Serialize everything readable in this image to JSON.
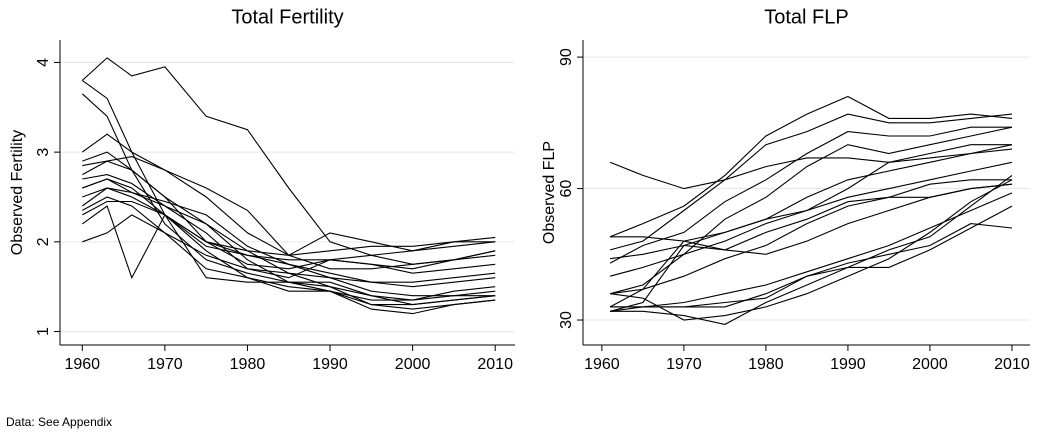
{
  "chart_data": [
    {
      "type": "line",
      "title": "Total Fertility",
      "y_label": "Observed Fertility",
      "x": [
        1960,
        1963,
        1966,
        1970,
        1975,
        1980,
        1985,
        1990,
        1995,
        2000,
        2005,
        2010
      ],
      "xlim": [
        1957.3,
        2012.4
      ],
      "xticks": [
        1960,
        1970,
        1980,
        1990,
        2000,
        2010
      ],
      "ylim": [
        0.85,
        4.25
      ],
      "yticks": [
        1,
        2,
        3,
        4
      ],
      "grid": true,
      "series": [
        {
          "color": "#000000",
          "values": [
            3.8,
            4.05,
            3.85,
            3.95,
            3.4,
            3.25,
            2.6,
            2.0,
            1.85,
            1.75,
            1.8,
            1.9
          ]
        },
        {
          "color": "#000000",
          "values": [
            3.8,
            3.6,
            3.0,
            2.3,
            1.6,
            1.55,
            1.55,
            1.55,
            1.4,
            1.3,
            1.35,
            1.4
          ]
        },
        {
          "color": "#000000",
          "values": [
            3.65,
            3.4,
            2.8,
            2.2,
            1.8,
            1.65,
            1.55,
            1.5,
            1.3,
            1.25,
            1.3,
            1.35
          ]
        },
        {
          "color": "#000000",
          "values": [
            3.0,
            3.2,
            3.0,
            2.8,
            2.5,
            2.1,
            1.85,
            2.1,
            2.0,
            1.9,
            1.95,
            2.0
          ]
        },
        {
          "color": "#000000",
          "values": [
            2.85,
            2.9,
            2.95,
            2.8,
            2.6,
            2.35,
            1.85,
            1.7,
            1.7,
            1.75,
            1.8,
            1.85
          ]
        },
        {
          "color": "#000000",
          "values": [
            2.75,
            2.9,
            2.8,
            2.5,
            2.0,
            1.85,
            1.75,
            1.6,
            1.45,
            1.4,
            1.4,
            1.4
          ]
        },
        {
          "color": "#000000",
          "values": [
            2.7,
            2.75,
            2.65,
            2.4,
            2.1,
            1.7,
            1.6,
            1.8,
            1.85,
            1.9,
            2.0,
            2.05
          ]
        },
        {
          "color": "#000000",
          "values": [
            2.6,
            2.7,
            2.6,
            2.3,
            1.9,
            1.6,
            1.45,
            1.45,
            1.3,
            1.3,
            1.35,
            1.4
          ]
        },
        {
          "color": "#000000",
          "values": [
            2.5,
            2.6,
            2.5,
            2.3,
            1.95,
            1.85,
            1.8,
            1.8,
            1.75,
            1.7,
            1.8,
            1.9
          ]
        },
        {
          "color": "#000000",
          "values": [
            2.4,
            2.6,
            2.55,
            2.4,
            2.2,
            1.9,
            1.65,
            1.5,
            1.4,
            1.35,
            1.4,
            1.45
          ]
        },
        {
          "color": "#000000",
          "values": [
            2.35,
            2.5,
            2.4,
            2.1,
            1.7,
            1.6,
            1.5,
            1.45,
            1.35,
            1.35,
            1.45,
            1.5
          ]
        },
        {
          "color": "#000000",
          "values": [
            2.2,
            2.4,
            1.6,
            2.3,
            2.0,
            1.75,
            1.7,
            1.8,
            1.75,
            1.65,
            1.7,
            1.75
          ]
        },
        {
          "color": "#000000",
          "values": [
            2.0,
            2.1,
            2.3,
            2.1,
            1.85,
            1.7,
            1.65,
            1.6,
            1.55,
            1.55,
            1.6,
            1.65
          ]
        },
        {
          "color": "#000000",
          "values": [
            2.3,
            2.45,
            2.45,
            2.3,
            2.0,
            1.9,
            1.85,
            1.9,
            1.95,
            1.95,
            2.0,
            2.0
          ]
        },
        {
          "color": "#000000",
          "values": [
            2.9,
            3.0,
            2.8,
            2.5,
            2.2,
            1.8,
            1.55,
            1.45,
            1.25,
            1.2,
            1.3,
            1.35
          ]
        },
        {
          "color": "#000000",
          "values": [
            2.6,
            2.7,
            2.55,
            2.45,
            2.3,
            1.95,
            1.75,
            1.65,
            1.55,
            1.5,
            1.55,
            1.6
          ]
        }
      ]
    },
    {
      "type": "line",
      "title": "Total FLP",
      "y_label": "Observed FLP",
      "x": [
        1961,
        1965,
        1970,
        1975,
        1980,
        1985,
        1990,
        1995,
        2000,
        2005,
        2010
      ],
      "xlim": [
        1957.7,
        2012.2
      ],
      "xticks": [
        1960,
        1970,
        1980,
        1990,
        2000,
        2010
      ],
      "ylim": [
        24.3,
        93.9
      ],
      "yticks": [
        30,
        60,
        90
      ],
      "grid": true,
      "series": [
        {
          "color": "#000000",
          "values": [
            66,
            63,
            60,
            62,
            65,
            67,
            67,
            66,
            67,
            68,
            70
          ]
        },
        {
          "color": "#000000",
          "values": [
            49,
            52,
            56,
            63,
            72,
            77,
            81,
            76,
            76,
            77,
            76
          ]
        },
        {
          "color": "#000000",
          "values": [
            46,
            48,
            55,
            62,
            70,
            73,
            77,
            75,
            75,
            76,
            77
          ]
        },
        {
          "color": "#000000",
          "values": [
            43,
            47,
            50,
            57,
            62,
            68,
            73,
            72,
            72,
            74,
            74
          ]
        },
        {
          "color": "#000000",
          "values": [
            36,
            38,
            45,
            53,
            58,
            65,
            70,
            68,
            70,
            72,
            74
          ]
        },
        {
          "color": "#000000",
          "values": [
            33,
            37,
            48,
            50,
            53,
            55,
            60,
            66,
            68,
            70,
            70
          ]
        },
        {
          "color": "#000000",
          "values": [
            44,
            45,
            47,
            50,
            53,
            58,
            62,
            64,
            66,
            68,
            69
          ]
        },
        {
          "color": "#000000",
          "values": [
            40,
            42,
            45,
            48,
            52,
            55,
            58,
            60,
            62,
            64,
            66
          ]
        },
        {
          "color": "#000000",
          "values": [
            36,
            37,
            40,
            44,
            47,
            52,
            56,
            58,
            61,
            62,
            62
          ]
        },
        {
          "color": "#000000",
          "values": [
            32,
            34,
            47,
            46,
            50,
            53,
            57,
            58,
            58,
            60,
            61
          ]
        },
        {
          "color": "#000000",
          "values": [
            33,
            33,
            34,
            36,
            38,
            41,
            44,
            47,
            51,
            55,
            59
          ]
        },
        {
          "color": "#000000",
          "values": [
            32,
            33,
            33,
            33,
            36,
            40,
            42,
            46,
            49,
            56,
            63
          ]
        },
        {
          "color": "#000000",
          "values": [
            36,
            35,
            30,
            31,
            33,
            36,
            40,
            44,
            50,
            57,
            62
          ]
        },
        {
          "color": "#000000",
          "values": [
            33,
            33,
            33,
            34,
            35,
            40,
            43,
            45,
            47,
            52,
            51
          ]
        },
        {
          "color": "#000000",
          "values": [
            49,
            49,
            48,
            46,
            45,
            48,
            52,
            55,
            58,
            60,
            61
          ]
        },
        {
          "color": "#000000",
          "values": [
            32,
            32,
            31,
            29,
            34,
            38,
            42,
            42,
            46,
            51,
            56
          ]
        }
      ]
    }
  ],
  "note": "Data: See Appendix"
}
